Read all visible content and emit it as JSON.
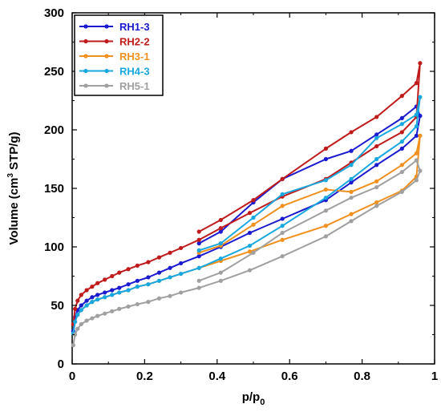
{
  "chart_data": {
    "type": "line",
    "xlabel_main": "p/p",
    "xlabel_sub": "0",
    "ylabel_pre": "Volume (cm",
    "ylabel_sup": "3",
    "ylabel_post": " STP/g)",
    "xlim": [
      0,
      1.0
    ],
    "ylim": [
      0,
      300
    ],
    "x_ticks": [
      "0",
      "0.2",
      "0.4",
      "0.6",
      "0.8",
      "1"
    ],
    "x_tick_values": [
      0,
      0.2,
      0.4,
      0.6,
      0.8,
      1.0
    ],
    "y_ticks": [
      "0",
      "50",
      "100",
      "150",
      "200",
      "250",
      "300"
    ],
    "y_tick_values": [
      0,
      50,
      100,
      150,
      200,
      250,
      300
    ],
    "grid": false,
    "legend_position": "top-left",
    "series": [
      {
        "name": "RH1-3",
        "color": "#1a1ad0",
        "x": [
          0.003,
          0.008,
          0.015,
          0.025,
          0.04,
          0.055,
          0.07,
          0.09,
          0.11,
          0.13,
          0.155,
          0.18,
          0.21,
          0.24,
          0.27,
          0.3,
          0.35,
          0.41,
          0.49,
          0.58,
          0.7,
          0.77,
          0.84,
          0.91,
          0.95,
          0.96,
          0.95,
          0.91,
          0.84,
          0.77,
          0.7,
          0.58,
          0.5,
          0.41,
          0.35
        ],
        "y": [
          28,
          40,
          46,
          50,
          54,
          57,
          59,
          61,
          63,
          65,
          68,
          71,
          74,
          78,
          82,
          86,
          92,
          100,
          112,
          124,
          140,
          155,
          170,
          184,
          195,
          212,
          220,
          210,
          196,
          182,
          175,
          158,
          138,
          113,
          103
        ]
      },
      {
        "name": "RH2-2",
        "color": "#c01a1a",
        "x": [
          0.003,
          0.008,
          0.015,
          0.025,
          0.04,
          0.055,
          0.07,
          0.09,
          0.11,
          0.13,
          0.155,
          0.18,
          0.21,
          0.24,
          0.27,
          0.3,
          0.35,
          0.41,
          0.49,
          0.58,
          0.7,
          0.77,
          0.84,
          0.91,
          0.95,
          0.96,
          0.95,
          0.91,
          0.84,
          0.77,
          0.7,
          0.58,
          0.5,
          0.41,
          0.35
        ],
        "y": [
          34,
          47,
          54,
          59,
          63,
          66,
          69,
          72,
          75,
          78,
          81,
          84,
          87,
          91,
          95,
          99,
          106,
          116,
          129,
          143,
          158,
          172,
          186,
          198,
          211,
          257,
          240,
          229,
          211,
          198,
          184,
          158,
          140,
          123,
          113
        ]
      },
      {
        "name": "RH3-1",
        "color": "#f0901e",
        "x": [
          0.003,
          0.008,
          0.015,
          0.025,
          0.04,
          0.055,
          0.07,
          0.09,
          0.11,
          0.13,
          0.155,
          0.18,
          0.21,
          0.24,
          0.27,
          0.3,
          0.35,
          0.41,
          0.49,
          0.58,
          0.7,
          0.77,
          0.84,
          0.91,
          0.95,
          0.96,
          0.95,
          0.91,
          0.84,
          0.77,
          0.7,
          0.58,
          0.5,
          0.41,
          0.35
        ],
        "y": [
          26,
          36,
          42,
          46,
          50,
          53,
          55,
          57,
          59,
          61,
          63,
          66,
          68,
          71,
          74,
          77,
          82,
          88,
          96,
          106,
          118,
          128,
          138,
          148,
          160,
          195,
          180,
          170,
          156,
          147,
          149,
          135,
          119,
          101,
          95
        ]
      },
      {
        "name": "RH4-3",
        "color": "#18a8e0",
        "x": [
          0.003,
          0.008,
          0.015,
          0.025,
          0.04,
          0.055,
          0.07,
          0.09,
          0.11,
          0.13,
          0.155,
          0.18,
          0.21,
          0.24,
          0.27,
          0.3,
          0.35,
          0.41,
          0.49,
          0.58,
          0.7,
          0.77,
          0.84,
          0.91,
          0.95,
          0.96,
          0.95,
          0.91,
          0.84,
          0.77,
          0.7,
          0.58,
          0.5,
          0.41,
          0.35
        ],
        "y": [
          26,
          36,
          42,
          46,
          50,
          53,
          55,
          57,
          59,
          61,
          63,
          66,
          68,
          71,
          74,
          77,
          82,
          90,
          101,
          118,
          142,
          158,
          175,
          190,
          203,
          228,
          213,
          205,
          193,
          170,
          157,
          145,
          125,
          103,
          97
        ]
      },
      {
        "name": "RH5-1",
        "color": "#a0a0a0",
        "x": [
          0.003,
          0.008,
          0.015,
          0.025,
          0.04,
          0.055,
          0.07,
          0.09,
          0.11,
          0.13,
          0.155,
          0.18,
          0.21,
          0.24,
          0.27,
          0.3,
          0.35,
          0.41,
          0.49,
          0.58,
          0.7,
          0.77,
          0.84,
          0.91,
          0.95,
          0.96,
          0.95,
          0.91,
          0.84,
          0.77,
          0.7,
          0.58,
          0.5,
          0.41,
          0.35
        ],
        "y": [
          16,
          25,
          30,
          34,
          37,
          39,
          41,
          43,
          45,
          47,
          49,
          51,
          53,
          56,
          58,
          61,
          65,
          71,
          80,
          92,
          109,
          122,
          135,
          147,
          157,
          165,
          174,
          164,
          151,
          142,
          131,
          112,
          95,
          78,
          71
        ]
      }
    ]
  }
}
